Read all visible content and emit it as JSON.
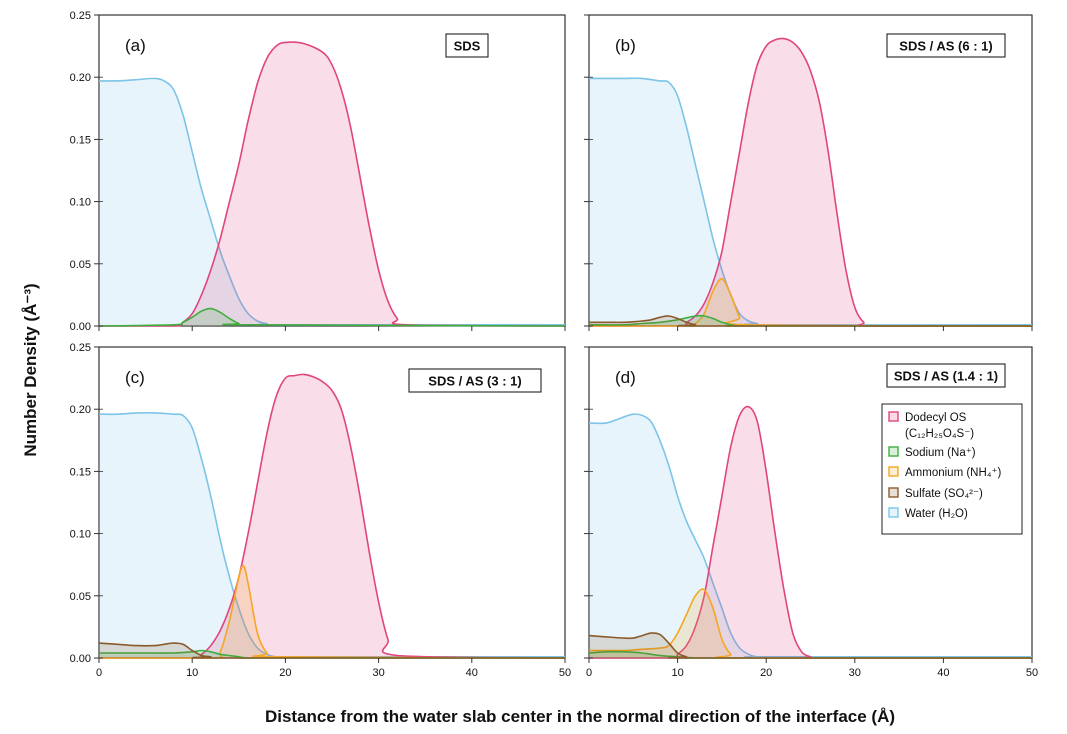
{
  "figure": {
    "ylabel": "Number Density (Å⁻³)",
    "xlabel": "Distance from the water slab center in the normal direction of the interface (Å)"
  },
  "legend": {
    "entries": [
      {
        "key": "dodecyl",
        "line1": "Dodecyl OS",
        "line2": "(C₁₂H₂₅O₄S⁻)",
        "color": "#e0457f"
      },
      {
        "key": "sodium",
        "line1": "Sodium (Na⁺)",
        "color": "#3fae3f"
      },
      {
        "key": "ammonium",
        "line1": "Ammonium (NH₄⁺)",
        "color": "#f5a623"
      },
      {
        "key": "sulfate",
        "line1": "Sulfate (SO₄²⁻)",
        "color": "#8b5a2b"
      },
      {
        "key": "water",
        "line1": "Water (H₂O)",
        "color": "#7cc4e8"
      }
    ]
  },
  "chart_data": [
    {
      "type": "area",
      "panel": "(a)",
      "tag": "SDS",
      "xlim": [
        0,
        50
      ],
      "ylim": [
        0,
        0.25
      ],
      "xticks": [
        0,
        10,
        20,
        30,
        40,
        50
      ],
      "yticks": [
        0.0,
        0.05,
        0.1,
        0.15,
        0.2,
        0.25
      ],
      "series": [
        {
          "name": "Water (H₂O)",
          "key": "water",
          "x": [
            0,
            2,
            4,
            6,
            7,
            8,
            9,
            10,
            11,
            12,
            13,
            14,
            15,
            16,
            17,
            18,
            20,
            50
          ],
          "y": [
            0.197,
            0.197,
            0.198,
            0.199,
            0.197,
            0.19,
            0.17,
            0.14,
            0.11,
            0.085,
            0.06,
            0.04,
            0.022,
            0.01,
            0.004,
            0.002,
            0.001,
            0.001
          ]
        },
        {
          "name": "Dodecyl OS",
          "key": "dodecyl",
          "x": [
            0,
            8,
            9,
            10,
            11,
            12,
            13,
            14,
            15,
            16,
            17,
            18,
            19,
            20,
            22,
            24,
            25,
            26,
            27,
            28,
            29,
            30,
            31,
            32,
            33,
            50
          ],
          "y": [
            0,
            0,
            0.003,
            0.01,
            0.025,
            0.045,
            0.07,
            0.1,
            0.13,
            0.165,
            0.195,
            0.215,
            0.225,
            0.228,
            0.227,
            0.22,
            0.21,
            0.19,
            0.16,
            0.12,
            0.08,
            0.045,
            0.02,
            0.006,
            0.001,
            0
          ]
        },
        {
          "name": "Sodium (Na⁺)",
          "key": "sodium",
          "x": [
            0,
            8,
            9,
            10,
            11,
            12,
            13,
            14,
            15,
            16,
            50
          ],
          "y": [
            0,
            0.001,
            0.003,
            0.007,
            0.012,
            0.014,
            0.011,
            0.006,
            0.002,
            0.001,
            0
          ]
        }
      ]
    },
    {
      "type": "area",
      "panel": "(b)",
      "tag": "SDS / AS (6 : 1)",
      "xlim": [
        0,
        50
      ],
      "ylim": [
        0,
        0.25
      ],
      "xticks": [
        0,
        10,
        20,
        30,
        40,
        50
      ],
      "yticks": [
        0.0,
        0.05,
        0.1,
        0.15,
        0.2,
        0.25
      ],
      "series": [
        {
          "name": "Water (H₂O)",
          "key": "water",
          "x": [
            0,
            2,
            4,
            6,
            8,
            9,
            10,
            11,
            12,
            13,
            14,
            15,
            16,
            17,
            18,
            19,
            20,
            50
          ],
          "y": [
            0.199,
            0.199,
            0.199,
            0.199,
            0.197,
            0.196,
            0.185,
            0.16,
            0.13,
            0.1,
            0.07,
            0.045,
            0.025,
            0.01,
            0.004,
            0.002,
            0.001,
            0.001
          ]
        },
        {
          "name": "Dodecyl OS",
          "key": "dodecyl",
          "x": [
            0,
            10,
            11,
            12,
            13,
            14,
            15,
            16,
            17,
            18,
            19,
            20,
            21,
            22,
            23,
            24,
            25,
            26,
            27,
            28,
            29,
            30,
            31,
            32,
            50
          ],
          "y": [
            0,
            0,
            0.003,
            0.008,
            0.018,
            0.035,
            0.06,
            0.1,
            0.14,
            0.18,
            0.21,
            0.225,
            0.23,
            0.231,
            0.228,
            0.22,
            0.205,
            0.18,
            0.14,
            0.09,
            0.045,
            0.015,
            0.003,
            0,
            0
          ]
        },
        {
          "name": "Ammonium (NH₄⁺)",
          "key": "ammonium",
          "x": [
            0,
            11,
            12,
            13,
            14,
            15,
            16,
            17,
            18,
            50
          ],
          "y": [
            0,
            0,
            0.002,
            0.01,
            0.028,
            0.038,
            0.025,
            0.007,
            0.001,
            0
          ]
        },
        {
          "name": "Sodium (Na⁺)",
          "key": "sodium",
          "x": [
            0,
            4,
            6,
            8,
            10,
            12,
            13,
            14,
            15,
            16,
            17,
            18,
            50
          ],
          "y": [
            0.001,
            0.001,
            0.002,
            0.003,
            0.005,
            0.008,
            0.008,
            0.006,
            0.003,
            0.001,
            0,
            0,
            0
          ]
        },
        {
          "name": "Sulfate (SO₄²⁻)",
          "key": "sulfate",
          "x": [
            0,
            2,
            4,
            6,
            7,
            8,
            9,
            10,
            11,
            12,
            13,
            50
          ],
          "y": [
            0.003,
            0.003,
            0.003,
            0.004,
            0.005,
            0.007,
            0.008,
            0.006,
            0.003,
            0.001,
            0,
            0
          ]
        }
      ]
    },
    {
      "type": "area",
      "panel": "(c)",
      "tag": "SDS / AS (3 : 1)",
      "xlim": [
        0,
        50
      ],
      "ylim": [
        0,
        0.25
      ],
      "xticks": [
        0,
        10,
        20,
        30,
        40,
        50
      ],
      "yticks": [
        0.0,
        0.05,
        0.1,
        0.15,
        0.2,
        0.25
      ],
      "series": [
        {
          "name": "Water (H₂O)",
          "key": "water",
          "x": [
            0,
            2,
            4,
            6,
            8,
            9,
            10,
            11,
            12,
            13,
            14,
            15,
            16,
            17,
            18,
            19,
            20,
            50
          ],
          "y": [
            0.196,
            0.196,
            0.197,
            0.197,
            0.196,
            0.195,
            0.185,
            0.16,
            0.13,
            0.095,
            0.065,
            0.04,
            0.02,
            0.008,
            0.003,
            0.001,
            0.001,
            0.001
          ]
        },
        {
          "name": "Dodecyl OS",
          "key": "dodecyl",
          "x": [
            0,
            10,
            11,
            12,
            13,
            14,
            15,
            16,
            17,
            18,
            19,
            20,
            21,
            22,
            23,
            24,
            25,
            26,
            27,
            28,
            29,
            30,
            31,
            32,
            50
          ],
          "y": [
            0,
            0,
            0.003,
            0.01,
            0.022,
            0.04,
            0.065,
            0.1,
            0.14,
            0.18,
            0.21,
            0.225,
            0.227,
            0.228,
            0.226,
            0.222,
            0.215,
            0.2,
            0.17,
            0.13,
            0.085,
            0.045,
            0.015,
            0.002,
            0
          ]
        },
        {
          "name": "Ammonium (NH₄⁺)",
          "key": "ammonium",
          "x": [
            0,
            12,
            13,
            14,
            15,
            15.5,
            16,
            17,
            18,
            19,
            50
          ],
          "y": [
            0,
            0,
            0.005,
            0.03,
            0.065,
            0.074,
            0.06,
            0.02,
            0.004,
            0.001,
            0
          ]
        },
        {
          "name": "Sodium (Na⁺)",
          "key": "sodium",
          "x": [
            0,
            4,
            6,
            8,
            10,
            11,
            12,
            13,
            14,
            15,
            16,
            18,
            50
          ],
          "y": [
            0.004,
            0.004,
            0.004,
            0.004,
            0.005,
            0.006,
            0.005,
            0.003,
            0.002,
            0.001,
            0,
            0,
            0
          ]
        },
        {
          "name": "Sulfate (SO₄²⁻)",
          "key": "sulfate",
          "x": [
            0,
            2,
            4,
            6,
            7,
            8,
            9,
            10,
            11,
            12,
            13,
            50
          ],
          "y": [
            0.012,
            0.011,
            0.01,
            0.01,
            0.011,
            0.012,
            0.011,
            0.006,
            0.002,
            0.001,
            0,
            0
          ]
        }
      ]
    },
    {
      "type": "area",
      "panel": "(d)",
      "tag": "SDS / AS (1.4 : 1)",
      "xlim": [
        0,
        50
      ],
      "ylim": [
        0,
        0.25
      ],
      "xticks": [
        0,
        10,
        20,
        30,
        40,
        50
      ],
      "yticks": [
        0.0,
        0.05,
        0.1,
        0.15,
        0.2,
        0.25
      ],
      "series": [
        {
          "name": "Water (H₂O)",
          "key": "water",
          "x": [
            0,
            2,
            4,
            5,
            6,
            7,
            8,
            9,
            10,
            11,
            12,
            13,
            14,
            15,
            16,
            17,
            18,
            19,
            20,
            50
          ],
          "y": [
            0.189,
            0.189,
            0.194,
            0.196,
            0.195,
            0.19,
            0.175,
            0.155,
            0.13,
            0.11,
            0.095,
            0.08,
            0.06,
            0.04,
            0.02,
            0.008,
            0.003,
            0.001,
            0.001,
            0.001
          ]
        },
        {
          "name": "Dodecyl OS",
          "key": "dodecyl",
          "x": [
            0,
            9,
            10,
            11,
            12,
            13,
            14,
            15,
            16,
            17,
            18,
            19,
            20,
            21,
            22,
            23,
            24,
            25,
            26,
            50
          ],
          "y": [
            0,
            0,
            0.003,
            0.01,
            0.025,
            0.05,
            0.09,
            0.13,
            0.17,
            0.195,
            0.202,
            0.19,
            0.15,
            0.1,
            0.055,
            0.02,
            0.005,
            0.001,
            0,
            0
          ]
        },
        {
          "name": "Ammonium (NH₄⁺)",
          "key": "ammonium",
          "x": [
            0,
            4,
            6,
            8,
            9,
            10,
            11,
            12,
            13,
            14,
            15,
            16,
            17,
            50
          ],
          "y": [
            0.006,
            0.006,
            0.007,
            0.008,
            0.01,
            0.02,
            0.035,
            0.05,
            0.055,
            0.04,
            0.015,
            0.003,
            0,
            0
          ]
        },
        {
          "name": "Sodium (Na⁺)",
          "key": "sodium",
          "x": [
            0,
            2,
            4,
            6,
            8,
            10,
            12,
            14,
            50
          ],
          "y": [
            0.004,
            0.005,
            0.005,
            0.004,
            0.002,
            0.001,
            0,
            0,
            0
          ]
        },
        {
          "name": "Sulfate (SO₄²⁻)",
          "key": "sulfate",
          "x": [
            0,
            2,
            4,
            5,
            6,
            7,
            8,
            9,
            10,
            11,
            12,
            50
          ],
          "y": [
            0.018,
            0.017,
            0.016,
            0.016,
            0.018,
            0.02,
            0.019,
            0.012,
            0.004,
            0.001,
            0,
            0
          ]
        }
      ]
    }
  ]
}
